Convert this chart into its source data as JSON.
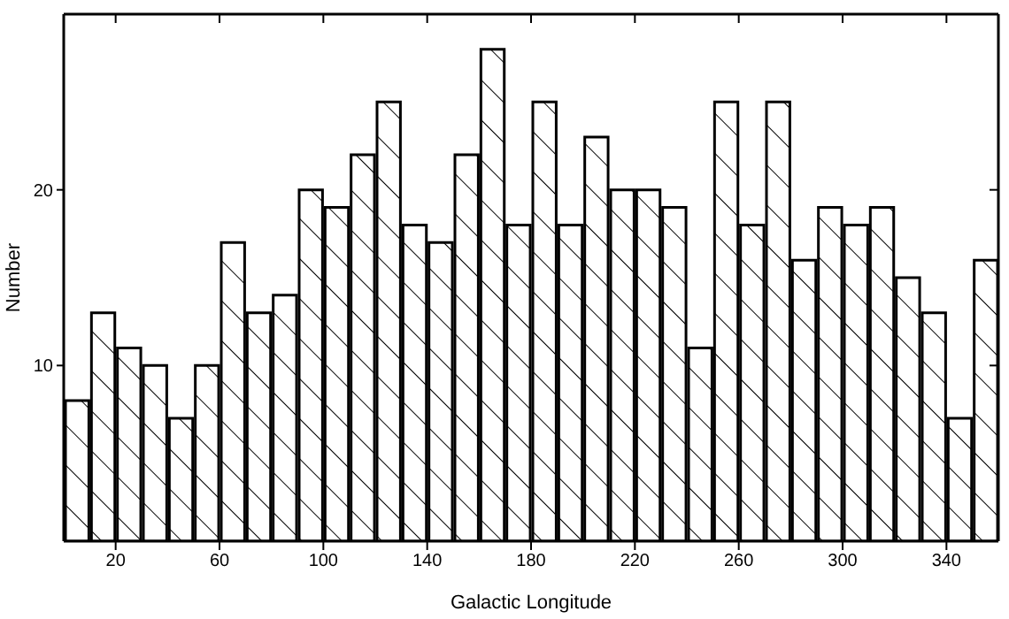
{
  "chart_data": {
    "type": "histogram",
    "xlabel": "Galactic Longitude",
    "ylabel": "Number",
    "bins": [
      0,
      10,
      20,
      30,
      40,
      50,
      60,
      70,
      80,
      90,
      100,
      110,
      120,
      130,
      140,
      150,
      160,
      170,
      180,
      190,
      200,
      210,
      220,
      230,
      240,
      250,
      260,
      270,
      280,
      290,
      300,
      310,
      320,
      330,
      340,
      350,
      360
    ],
    "values": [
      8,
      13,
      11,
      10,
      7,
      10,
      17,
      13,
      14,
      20,
      19,
      22,
      25,
      18,
      17,
      22,
      28,
      18,
      25,
      18,
      23,
      20,
      20,
      19,
      11,
      25,
      18,
      25,
      16,
      19,
      18,
      19,
      15,
      13,
      7,
      16
    ],
    "color": "#000000",
    "xlim": [
      0,
      360
    ],
    "xticks": [
      20,
      60,
      100,
      140,
      180,
      220,
      260,
      300,
      340
    ],
    "ylim": [
      0,
      30
    ],
    "yticks": [
      10,
      20
    ]
  }
}
